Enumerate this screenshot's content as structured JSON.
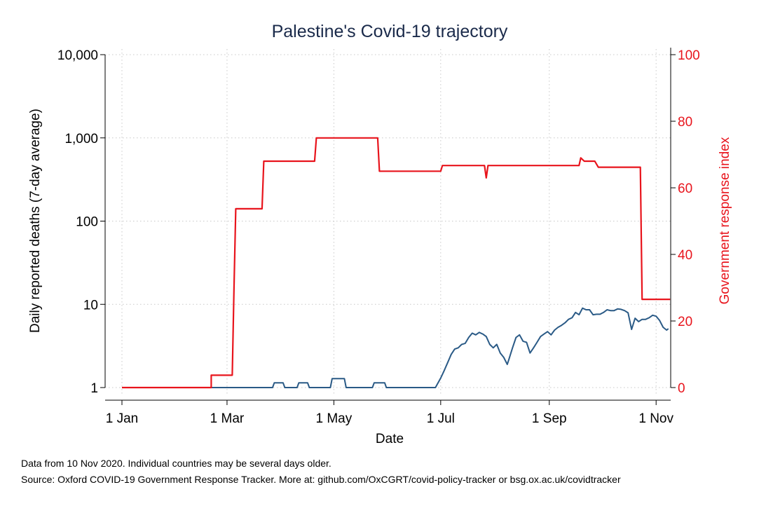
{
  "chart_data": {
    "type": "line",
    "title": "Palestine's Covid-19 trajectory",
    "xlabel": "Date",
    "ylabel": "Daily reported deaths (7-day average)",
    "y2label": "Government response index",
    "x_ticks": [
      {
        "label": "1 Jan",
        "day": 0
      },
      {
        "label": "1 Mar",
        "day": 60
      },
      {
        "label": "1 May",
        "day": 121
      },
      {
        "label": "1 Jul",
        "day": 182
      },
      {
        "label": "1 Sep",
        "day": 244
      },
      {
        "label": "1 Nov",
        "day": 305
      }
    ],
    "x_unit": "days since 1 Jan 2020",
    "xlim": [
      0,
      316
    ],
    "y_scale": "log",
    "ylim": [
      1,
      10000
    ],
    "y_ticks": [
      {
        "label": "1",
        "value": 1
      },
      {
        "label": "10",
        "value": 10
      },
      {
        "label": "100",
        "value": 100
      },
      {
        "label": "1,000",
        "value": 1000
      },
      {
        "label": "10,000",
        "value": 10000
      }
    ],
    "y2lim": [
      0,
      100
    ],
    "y2_ticks": [
      {
        "label": "0",
        "value": 0
      },
      {
        "label": "20",
        "value": 20
      },
      {
        "label": "40",
        "value": 40
      },
      {
        "label": "60",
        "value": 60
      },
      {
        "label": "80",
        "value": 80
      },
      {
        "label": "100",
        "value": 100
      }
    ],
    "grid": true,
    "series": [
      {
        "axis": "left",
        "color": "#2a5a86",
        "points": [
          [
            0,
            1
          ],
          [
            86,
            1
          ],
          [
            87,
            1.14
          ],
          [
            92,
            1.14
          ],
          [
            93,
            1
          ],
          [
            100,
            1
          ],
          [
            101,
            1.14
          ],
          [
            106,
            1.14
          ],
          [
            107,
            1
          ],
          [
            119,
            1
          ],
          [
            120,
            1.28
          ],
          [
            127,
            1.28
          ],
          [
            128,
            1
          ],
          [
            143,
            1
          ],
          [
            144,
            1.14
          ],
          [
            150,
            1.14
          ],
          [
            151,
            1
          ],
          [
            179,
            1
          ],
          [
            182,
            1.3
          ],
          [
            184,
            1.6
          ],
          [
            186,
            2
          ],
          [
            188,
            2.5
          ],
          [
            190,
            2.9
          ],
          [
            192,
            3
          ],
          [
            194,
            3.3
          ],
          [
            196,
            3.4
          ],
          [
            198,
            4
          ],
          [
            200,
            4.5
          ],
          [
            202,
            4.3
          ],
          [
            204,
            4.6
          ],
          [
            206,
            4.4
          ],
          [
            208,
            4.1
          ],
          [
            210,
            3.3
          ],
          [
            212,
            3.0
          ],
          [
            214,
            3.3
          ],
          [
            216,
            2.6
          ],
          [
            218,
            2.3
          ],
          [
            220,
            1.9
          ],
          [
            221,
            2.2
          ],
          [
            223,
            3.0
          ],
          [
            225,
            4.0
          ],
          [
            227,
            4.3
          ],
          [
            229,
            3.6
          ],
          [
            231,
            3.5
          ],
          [
            233,
            2.6
          ],
          [
            235,
            3.0
          ],
          [
            237,
            3.5
          ],
          [
            239,
            4.1
          ],
          [
            241,
            4.4
          ],
          [
            243,
            4.7
          ],
          [
            245,
            4.3
          ],
          [
            247,
            4.9
          ],
          [
            249,
            5.3
          ],
          [
            251,
            5.6
          ],
          [
            253,
            6.0
          ],
          [
            255,
            6.6
          ],
          [
            257,
            6.9
          ],
          [
            259,
            8.0
          ],
          [
            261,
            7.5
          ],
          [
            263,
            9.0
          ],
          [
            265,
            8.6
          ],
          [
            267,
            8.6
          ],
          [
            269,
            7.5
          ],
          [
            271,
            7.6
          ],
          [
            273,
            7.6
          ],
          [
            275,
            8.0
          ],
          [
            277,
            8.6
          ],
          [
            279,
            8.4
          ],
          [
            281,
            8.4
          ],
          [
            283,
            8.8
          ],
          [
            285,
            8.7
          ],
          [
            287,
            8.4
          ],
          [
            289,
            7.9
          ],
          [
            291,
            5.0
          ],
          [
            293,
            6.8
          ],
          [
            295,
            6.2
          ],
          [
            297,
            6.6
          ],
          [
            299,
            6.6
          ],
          [
            301,
            6.9
          ],
          [
            303,
            7.4
          ],
          [
            305,
            7.2
          ],
          [
            307,
            6.4
          ],
          [
            309,
            5.3
          ],
          [
            311,
            4.9
          ],
          [
            312,
            5.1
          ]
        ]
      },
      {
        "axis": "right",
        "color": "#e8141c",
        "points": [
          [
            0,
            0
          ],
          [
            51,
            0
          ],
          [
            51,
            3.7
          ],
          [
            63,
            3.7
          ],
          [
            64,
            30
          ],
          [
            65,
            53.7
          ],
          [
            80,
            53.7
          ],
          [
            81,
            68
          ],
          [
            110,
            68
          ],
          [
            111,
            75
          ],
          [
            146,
            75
          ],
          [
            147,
            65
          ],
          [
            182,
            65
          ],
          [
            183,
            66.7
          ],
          [
            207,
            66.7
          ],
          [
            208,
            63
          ],
          [
            209,
            66.7
          ],
          [
            261,
            66.7
          ],
          [
            262,
            69
          ],
          [
            264,
            68
          ],
          [
            270,
            68
          ],
          [
            272,
            66.2
          ],
          [
            296,
            66.2
          ],
          [
            297,
            26.5
          ],
          [
            313,
            26.5
          ]
        ]
      }
    ]
  },
  "footnote": {
    "line1": "Data from 10 Nov 2020. Individual countries may be several days older.",
    "line2": "Source: Oxford COVID-19 Government Response Tracker. More at: github.com/OxCGRT/covid-policy-tracker or bsg.ox.ac.uk/covidtracker"
  }
}
